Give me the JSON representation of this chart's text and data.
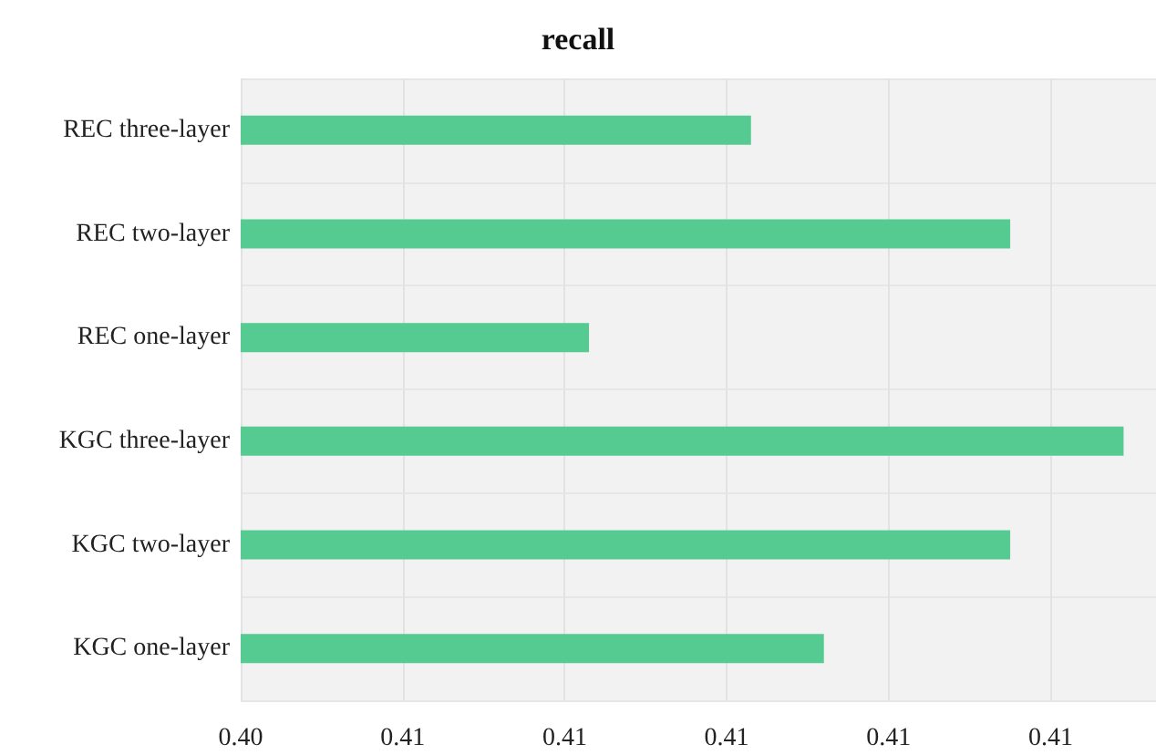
{
  "chart_data": {
    "type": "bar",
    "orientation": "horizontal",
    "title": "recall",
    "categories": [
      "REC three-layer",
      "REC two-layer",
      "REC one-layer",
      "KGC three-layer",
      "KGC two-layer",
      "KGC one-layer"
    ],
    "values": [
      0.4103,
      0.4135,
      0.4083,
      0.4149,
      0.4135,
      0.4112
    ],
    "color": "#55cb92",
    "xlim": [
      0.404,
      0.4153
    ],
    "xticks": [
      {
        "value": 0.404,
        "label": "0.40"
      },
      {
        "value": 0.406,
        "label": "0.41"
      },
      {
        "value": 0.408,
        "label": "0.41"
      },
      {
        "value": 0.41,
        "label": "0.41"
      },
      {
        "value": 0.412,
        "label": "0.41"
      },
      {
        "value": 0.414,
        "label": "0.41"
      }
    ],
    "grid": true
  }
}
